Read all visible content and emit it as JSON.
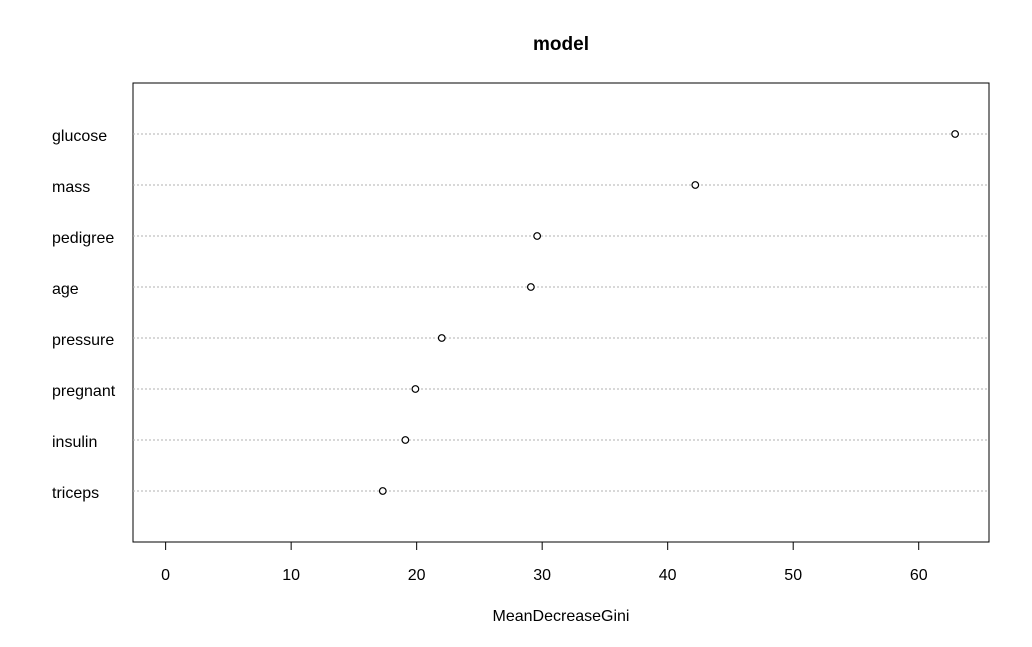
{
  "chart_data": {
    "type": "scatter",
    "title": "model",
    "xlabel": "MeanDecreaseGini",
    "ylabel": "",
    "xlim": [
      -2.6,
      65.6
    ],
    "xticks": [
      0,
      10,
      20,
      30,
      40,
      50,
      60
    ],
    "grid": "horizontal dotted",
    "categories": [
      "glucose",
      "mass",
      "pedigree",
      "age",
      "pressure",
      "pregnant",
      "insulin",
      "triceps"
    ],
    "values": [
      62.9,
      42.2,
      29.6,
      29.1,
      22.0,
      19.9,
      19.1,
      17.3
    ]
  }
}
